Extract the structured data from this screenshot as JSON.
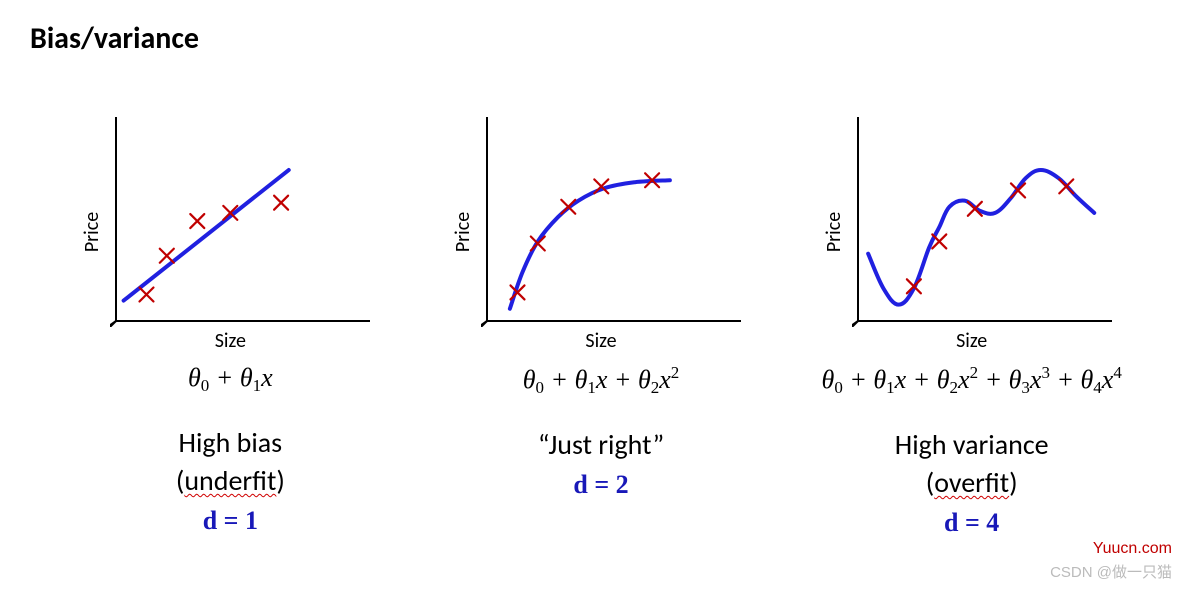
{
  "title": "Bias/variance",
  "axes": {
    "xlabel": "Size",
    "ylabel": "Price",
    "xlim": [
      0,
      10
    ],
    "ylim": [
      0,
      10
    ],
    "axis_color": "#000000",
    "axis_width": 2,
    "tick_len": 7
  },
  "style": {
    "curve_color": "#2020e0",
    "curve_width": 4,
    "marker_color": "#c00000",
    "marker_stroke_width": 2.2,
    "marker_size": 7,
    "background": "#ffffff",
    "formula_color": "#000000",
    "handwrite_color": "#1818b8",
    "title_fontsize": 30,
    "label_fontsize": 20,
    "formula_fontsize": 26,
    "desc_fontsize": 28,
    "handwrite_fontsize": 26
  },
  "panels": [
    {
      "id": "underfit",
      "points": [
        [
          1.2,
          1.3
        ],
        [
          2.0,
          3.2
        ],
        [
          3.2,
          4.9
        ],
        [
          4.5,
          5.3
        ],
        [
          6.5,
          5.8
        ]
      ],
      "curve": [
        [
          0.3,
          1.0
        ],
        [
          6.8,
          7.4
        ]
      ],
      "curve_type": "polyline",
      "formula_html": "<span class='th'>θ</span><span class='sub'>0</span> + <span class='th'>θ</span><span class='sub'>1</span>x",
      "desc_line1": "High bias",
      "desc_line2_pre": "(",
      "desc_line2_underlined": "underfit",
      "desc_line2_post": ")",
      "handwritten": "d = 1"
    },
    {
      "id": "justright",
      "points": [
        [
          1.2,
          1.4
        ],
        [
          2.0,
          3.8
        ],
        [
          3.2,
          5.6
        ],
        [
          4.5,
          6.6
        ],
        [
          6.5,
          6.9
        ]
      ],
      "curve": [
        [
          0.9,
          0.6
        ],
        [
          1.4,
          2.4
        ],
        [
          2.0,
          3.9
        ],
        [
          2.8,
          5.1
        ],
        [
          3.6,
          5.9
        ],
        [
          4.6,
          6.5
        ],
        [
          5.8,
          6.8
        ],
        [
          7.2,
          6.9
        ]
      ],
      "curve_type": "smooth",
      "formula_html": "<span class='th'>θ</span><span class='sub'>0</span> + <span class='th'>θ</span><span class='sub'>1</span>x + <span class='th'>θ</span><span class='sub'>2</span>x<span class='sup'>2</span>",
      "desc_line1": "“Just right”",
      "desc_line2_pre": "",
      "desc_line2_underlined": "",
      "desc_line2_post": "",
      "handwritten": "d = 2"
    },
    {
      "id": "overfit",
      "points": [
        [
          2.2,
          1.7
        ],
        [
          3.2,
          3.9
        ],
        [
          4.6,
          5.5
        ],
        [
          6.3,
          6.4
        ],
        [
          8.2,
          6.6
        ]
      ],
      "curve": [
        [
          0.4,
          3.3
        ],
        [
          1.0,
          1.6
        ],
        [
          1.6,
          0.8
        ],
        [
          2.2,
          1.6
        ],
        [
          2.8,
          3.6
        ],
        [
          3.2,
          4.6
        ],
        [
          3.6,
          5.6
        ],
        [
          4.2,
          5.9
        ],
        [
          4.8,
          5.4
        ],
        [
          5.4,
          5.3
        ],
        [
          6.0,
          6.0
        ],
        [
          6.6,
          7.0
        ],
        [
          7.2,
          7.4
        ],
        [
          7.9,
          7.0
        ],
        [
          8.6,
          6.1
        ],
        [
          9.3,
          5.3
        ]
      ],
      "curve_type": "smooth",
      "formula_html": "<span class='th'>θ</span><span class='sub'>0</span> + <span class='th'>θ</span><span class='sub'>1</span>x + <span class='th'>θ</span><span class='sub'>2</span>x<span class='sup'>2</span> + <span class='th'>θ</span><span class='sub'>3</span>x<span class='sup'>3</span> + <span class='th'>θ</span><span class='sub'>4</span>x<span class='sup'>4</span>",
      "desc_line1": "High variance",
      "desc_line2_pre": "(",
      "desc_line2_underlined": "overfit",
      "desc_line2_post": ")",
      "handwritten": "d = 4"
    }
  ],
  "watermarks": {
    "top": "Yuucn.com",
    "bottom": "CSDN @做一只猫"
  }
}
